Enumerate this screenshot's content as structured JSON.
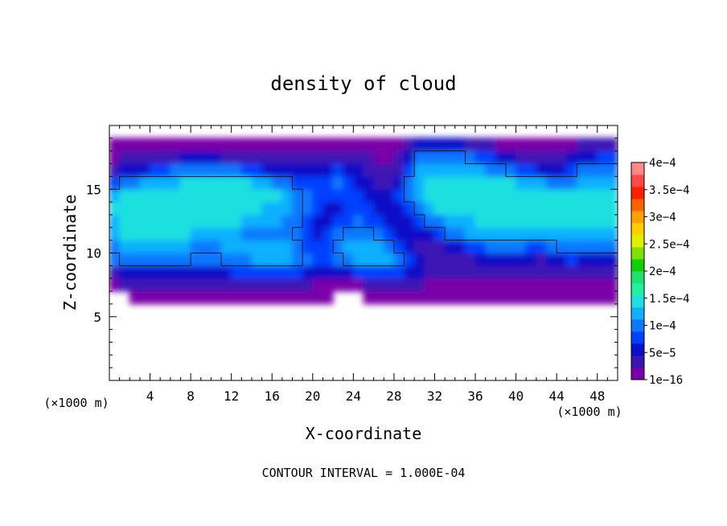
{
  "chart_data": {
    "type": "heatmap",
    "title": "density of cloud",
    "xlabel": "X-coordinate",
    "ylabel": "Z-coordinate",
    "x_unit_label": "(×1000 m)",
    "y_unit_label": "(×1000 m)",
    "footer": "CONTOUR INTERVAL = 1.000E-04",
    "xlim": [
      0,
      50
    ],
    "ylim": [
      0,
      20
    ],
    "x_ticks": [
      "4",
      "8",
      "12",
      "16",
      "20",
      "24",
      "28",
      "32",
      "36",
      "40",
      "44",
      "48"
    ],
    "y_ticks": [
      "5",
      "10",
      "15"
    ],
    "x_tick_values": [
      4,
      8,
      12,
      16,
      20,
      24,
      28,
      32,
      36,
      40,
      44,
      48
    ],
    "y_tick_values": [
      5,
      10,
      15
    ],
    "contour_level": 0.0001,
    "colorbar": {
      "labels": [
        "4e−4",
        "3.5e−4",
        "3e−4",
        "2.5e−4",
        "2e−4",
        "1.5e−4",
        "1e−4",
        "5e−5",
        "1e−16"
      ],
      "label_values": [
        0.0004,
        0.00035,
        0.0003,
        0.00025,
        0.0002,
        0.00015,
        0.0001,
        5e-05,
        1e-16
      ],
      "colors": [
        "#7a00a8",
        "#3c14b4",
        "#0a10c8",
        "#0040ff",
        "#0a78ff",
        "#10b0ff",
        "#1ee0e0",
        "#20f0a0",
        "#20e070",
        "#10d000",
        "#80e000",
        "#e0f000",
        "#ffd000",
        "#ffa000",
        "#ff6000",
        "#ff2000",
        "#ff4848",
        "#ff8888"
      ]
    },
    "field": {
      "nx": 50,
      "nz": 20,
      "cell_width": 1,
      "cell_height": 1,
      "x_step": 1,
      "z_step": 1,
      "values_note": "approximate cloud density per 1 km × 1 km cell, rows from z = 0 to z = 20 (×1000 m)",
      "rows": [
        [
          0,
          0,
          0,
          0,
          0,
          0,
          0,
          0,
          0,
          0,
          0,
          0,
          0,
          0,
          0,
          0,
          0,
          0,
          0,
          0,
          0,
          0,
          0,
          0,
          0,
          0,
          0,
          0,
          0,
          0,
          0,
          0,
          0,
          0,
          0,
          0,
          0,
          0,
          0,
          0,
          0,
          0,
          0,
          0,
          0,
          0,
          0,
          0,
          0,
          0
        ],
        [
          0,
          0,
          0,
          0,
          0,
          0,
          0,
          0,
          0,
          0,
          0,
          0,
          0,
          0,
          0,
          0,
          0,
          0,
          0,
          0,
          0,
          0,
          0,
          0,
          0,
          0,
          0,
          0,
          0,
          0,
          0,
          0,
          0,
          0,
          0,
          0,
          0,
          0,
          0,
          0,
          0,
          0,
          0,
          0,
          0,
          0,
          0,
          0,
          0,
          0
        ],
        [
          0,
          0,
          0,
          0,
          0,
          0,
          0,
          0,
          0,
          0,
          0,
          0,
          0,
          0,
          0,
          0,
          0,
          0,
          0,
          0,
          0,
          0,
          0,
          0,
          0,
          0,
          0,
          0,
          0,
          0,
          0,
          0,
          0,
          0,
          0,
          0,
          0,
          0,
          0,
          0,
          0,
          0,
          0,
          0,
          0,
          0,
          0,
          0,
          0,
          0
        ],
        [
          0,
          0,
          0,
          0,
          0,
          0,
          0,
          0,
          0,
          0,
          0,
          0,
          0,
          0,
          0,
          0,
          0,
          0,
          0,
          0,
          0,
          0,
          0,
          0,
          0,
          0,
          0,
          0,
          0,
          0,
          0,
          0,
          0,
          0,
          0,
          0,
          0,
          0,
          0,
          0,
          0,
          0,
          0,
          0,
          0,
          0,
          0,
          0,
          0,
          0
        ],
        [
          0,
          0,
          0,
          0,
          0,
          0,
          0,
          0,
          0,
          0,
          0,
          0,
          0,
          0,
          0,
          0,
          0,
          0,
          0,
          0,
          0,
          0,
          0,
          0,
          0,
          0,
          0,
          0,
          0,
          0,
          0,
          0,
          0,
          0,
          0,
          0,
          0,
          0,
          0,
          0,
          0,
          0,
          0,
          0,
          0,
          0,
          0,
          0,
          0,
          0
        ],
        [
          0,
          0,
          0,
          0,
          0,
          0,
          0,
          0,
          0,
          0,
          0,
          0,
          0,
          0,
          0,
          0,
          0,
          0,
          0,
          0,
          0,
          0,
          0,
          0,
          0,
          0,
          0,
          0,
          0,
          0,
          0,
          0,
          0,
          0,
          0,
          0,
          0,
          0,
          0,
          0,
          0,
          0,
          0,
          0,
          0,
          0,
          0,
          0,
          0,
          0
        ],
        [
          0,
          0,
          1e-05,
          1e-05,
          1e-05,
          1e-05,
          1e-05,
          1e-05,
          1e-05,
          1e-05,
          1e-05,
          1e-05,
          1e-05,
          1e-05,
          1e-05,
          1e-05,
          1e-05,
          1e-05,
          1e-05,
          1e-05,
          1e-05,
          1e-05,
          0,
          0,
          0,
          1e-05,
          1e-05,
          1e-05,
          1e-05,
          1e-05,
          1e-05,
          1e-05,
          1e-05,
          1e-05,
          1e-05,
          1e-05,
          1e-05,
          1e-05,
          1e-05,
          1e-05,
          1e-05,
          1e-05,
          1e-05,
          1e-05,
          1e-05,
          1e-05,
          1e-05,
          1e-05,
          1e-05,
          1e-05
        ],
        [
          1e-05,
          3e-05,
          3e-05,
          3e-05,
          3e-05,
          3e-05,
          3e-05,
          3e-05,
          3e-05,
          3e-05,
          3e-05,
          3e-05,
          3e-05,
          3e-05,
          3e-05,
          3e-05,
          3e-05,
          3e-05,
          3e-05,
          3e-05,
          2e-05,
          2e-05,
          1e-05,
          1e-05,
          2e-05,
          3e-05,
          3e-05,
          3e-05,
          3e-05,
          3e-05,
          3e-05,
          2e-05,
          2e-05,
          2e-05,
          2e-05,
          2e-05,
          2e-05,
          2e-05,
          2e-05,
          2e-05,
          2e-05,
          2e-05,
          2e-05,
          2e-05,
          2e-05,
          2e-05,
          2e-05,
          2e-05,
          2e-05,
          2e-05
        ],
        [
          4e-05,
          6e-05,
          6e-05,
          6e-05,
          6e-05,
          6e-05,
          6e-05,
          6e-05,
          6e-05,
          6e-05,
          6e-05,
          6e-05,
          7e-05,
          8e-05,
          8e-05,
          8e-05,
          8e-05,
          8e-05,
          7e-05,
          6e-05,
          6e-05,
          6e-05,
          5e-05,
          6e-05,
          7e-05,
          8e-05,
          8e-05,
          8e-05,
          7e-05,
          6e-05,
          5e-05,
          4e-05,
          3e-05,
          3e-05,
          3e-05,
          3e-05,
          4e-05,
          4e-05,
          4e-05,
          4e-05,
          3e-05,
          3e-05,
          3e-05,
          3e-05,
          4e-05,
          4e-05,
          3e-05,
          3e-05,
          3e-05,
          3e-05
        ],
        [
          9e-05,
          0.0001,
          0.0001,
          0.0001,
          0.0001,
          0.0001,
          0.0001,
          0.0001,
          9e-05,
          9e-05,
          9e-05,
          0.0001,
          0.0001,
          0.00011,
          0.00012,
          0.00012,
          0.00012,
          0.00012,
          0.00011,
          9e-05,
          8e-05,
          8e-05,
          9e-05,
          0.00011,
          0.00012,
          0.00013,
          0.00013,
          0.00012,
          0.0001,
          8e-05,
          5e-05,
          3e-05,
          3e-05,
          4e-05,
          4e-05,
          4e-05,
          5e-05,
          6e-05,
          6e-05,
          6e-05,
          6e-05,
          5e-05,
          4e-05,
          5e-05,
          6e-05,
          7e-05,
          6e-05,
          5e-05,
          5e-05,
          6e-05
        ],
        [
          0.00011,
          0.00012,
          0.00012,
          0.00012,
          0.00012,
          0.00012,
          0.00012,
          0.00012,
          0.00011,
          0.00011,
          0.00011,
          0.00012,
          0.00012,
          0.00013,
          0.00013,
          0.00013,
          0.00013,
          0.00012,
          0.0001,
          8e-05,
          7e-05,
          8e-05,
          0.0001,
          0.00012,
          0.00013,
          0.00013,
          0.00012,
          0.0001,
          7e-05,
          5e-05,
          4e-05,
          3e-05,
          4e-05,
          5e-05,
          6e-05,
          7e-05,
          8e-05,
          9e-05,
          9e-05,
          9e-05,
          9e-05,
          8e-05,
          8e-05,
          9e-05,
          0.0001,
          0.0001,
          0.0001,
          0.0001,
          0.0001,
          0.0001
        ],
        [
          0.00013,
          0.00014,
          0.00014,
          0.00014,
          0.00014,
          0.00014,
          0.00014,
          0.00014,
          0.00013,
          0.00013,
          0.00013,
          0.00013,
          0.00012,
          0.00011,
          0.00011,
          0.00011,
          0.00011,
          0.0001,
          9e-05,
          7e-05,
          6e-05,
          7e-05,
          9e-05,
          0.0001,
          0.0001,
          0.0001,
          9e-05,
          8e-05,
          6e-05,
          5e-05,
          5e-05,
          6e-05,
          8e-05,
          0.0001,
          0.00011,
          0.00012,
          0.00012,
          0.00013,
          0.00013,
          0.00013,
          0.00012,
          0.00012,
          0.00012,
          0.00012,
          0.00013,
          0.00013,
          0.00013,
          0.00013,
          0.00013,
          0.00013
        ],
        [
          0.00013,
          0.00014,
          0.00014,
          0.00015,
          0.00015,
          0.00015,
          0.00015,
          0.00015,
          0.00015,
          0.00014,
          0.00014,
          0.00014,
          0.00014,
          0.00013,
          0.00013,
          0.00012,
          0.00012,
          0.00011,
          0.0001,
          8e-05,
          6e-05,
          6e-05,
          7e-05,
          8e-05,
          9e-05,
          8e-05,
          7e-05,
          6e-05,
          5e-05,
          6e-05,
          8e-05,
          0.0001,
          0.00011,
          0.00012,
          0.00013,
          0.00013,
          0.00014,
          0.00014,
          0.00014,
          0.00014,
          0.00014,
          0.00014,
          0.00014,
          0.00014,
          0.00014,
          0.00014,
          0.00014,
          0.00014,
          0.00014,
          0.00014
        ],
        [
          0.00014,
          0.00015,
          0.00015,
          0.00015,
          0.00015,
          0.00015,
          0.00015,
          0.00015,
          0.00015,
          0.00015,
          0.00015,
          0.00015,
          0.00015,
          0.00014,
          0.00014,
          0.00013,
          0.00013,
          0.00012,
          0.00011,
          9e-05,
          7e-05,
          6e-05,
          6e-05,
          7e-05,
          8e-05,
          7e-05,
          6e-05,
          5e-05,
          6e-05,
          8e-05,
          0.00011,
          0.00013,
          0.00014,
          0.00014,
          0.00014,
          0.00015,
          0.00015,
          0.00015,
          0.00015,
          0.00015,
          0.00015,
          0.00015,
          0.00015,
          0.00015,
          0.00015,
          0.00015,
          0.00015,
          0.00015,
          0.00015,
          0.00015
        ],
        [
          0.00013,
          0.00014,
          0.00014,
          0.00015,
          0.00015,
          0.00015,
          0.00015,
          0.00015,
          0.00015,
          0.00015,
          0.00015,
          0.00015,
          0.00015,
          0.00015,
          0.00015,
          0.00014,
          0.00014,
          0.00013,
          0.00011,
          9e-05,
          7e-05,
          7e-05,
          8e-05,
          8e-05,
          7e-05,
          6e-05,
          5e-05,
          5e-05,
          7e-05,
          0.0001,
          0.00013,
          0.00014,
          0.00015,
          0.00015,
          0.00015,
          0.00015,
          0.00015,
          0.00015,
          0.00015,
          0.00015,
          0.00015,
          0.00015,
          0.00015,
          0.00015,
          0.00015,
          0.00015,
          0.00015,
          0.00015,
          0.00015,
          0.00015
        ],
        [
          8e-05,
          0.0001,
          0.00011,
          0.00012,
          0.00013,
          0.00013,
          0.00013,
          0.00014,
          0.00014,
          0.00014,
          0.00014,
          0.00014,
          0.00014,
          0.00014,
          0.00013,
          0.00012,
          0.00011,
          0.0001,
          8e-05,
          7e-05,
          7e-05,
          8e-05,
          9e-05,
          8e-05,
          6e-05,
          5e-05,
          4e-05,
          4e-05,
          6e-05,
          0.0001,
          0.00013,
          0.00014,
          0.00014,
          0.00014,
          0.00014,
          0.00014,
          0.00014,
          0.00014,
          0.00014,
          0.00014,
          0.00013,
          0.00012,
          0.00012,
          0.00011,
          0.0001,
          0.00011,
          0.00012,
          0.00012,
          0.00012,
          0.00012
        ],
        [
          4e-05,
          5e-05,
          5e-05,
          6e-05,
          7e-05,
          8e-05,
          9e-05,
          9e-05,
          9e-05,
          9e-05,
          9e-05,
          9e-05,
          9e-05,
          8e-05,
          7e-05,
          6e-05,
          6e-05,
          6e-05,
          6e-05,
          6e-05,
          6e-05,
          6e-05,
          7e-05,
          6e-05,
          5e-05,
          4e-05,
          3e-05,
          3e-05,
          4e-05,
          8e-05,
          0.00012,
          0.00013,
          0.00013,
          0.00013,
          0.00013,
          0.00013,
          0.00012,
          0.00011,
          0.0001,
          9e-05,
          8e-05,
          7e-05,
          6e-05,
          5e-05,
          6e-05,
          8e-05,
          0.0001,
          0.0001,
          0.00011,
          0.0001
        ],
        [
          2e-05,
          3e-05,
          3e-05,
          3e-05,
          4e-05,
          4e-05,
          4e-05,
          5e-05,
          5e-05,
          5e-05,
          5e-05,
          4e-05,
          4e-05,
          4e-05,
          3e-05,
          3e-05,
          3e-05,
          3e-05,
          4e-05,
          4e-05,
          4e-05,
          4e-05,
          4e-05,
          4e-05,
          3e-05,
          3e-05,
          2e-05,
          2e-05,
          3e-05,
          6e-05,
          0.0001,
          0.00011,
          0.00011,
          0.00011,
          0.0001,
          9e-05,
          8e-05,
          7e-05,
          6e-05,
          5e-05,
          4e-05,
          4e-05,
          3e-05,
          3e-05,
          4e-05,
          5e-05,
          6e-05,
          6e-05,
          7e-05,
          7e-05
        ],
        [
          1e-05,
          1e-05,
          1e-05,
          1e-05,
          1e-05,
          1e-05,
          1e-05,
          2e-05,
          2e-05,
          2e-05,
          2e-05,
          2e-05,
          2e-05,
          2e-05,
          2e-05,
          2e-05,
          2e-05,
          2e-05,
          2e-05,
          2e-05,
          2e-05,
          2e-05,
          2e-05,
          2e-05,
          2e-05,
          1e-05,
          1e-05,
          1e-05,
          2e-05,
          3e-05,
          5e-05,
          5e-05,
          5e-05,
          5e-05,
          5e-05,
          4e-05,
          3e-05,
          3e-05,
          2e-05,
          2e-05,
          2e-05,
          2e-05,
          2e-05,
          2e-05,
          2e-05,
          2e-05,
          3e-05,
          3e-05,
          3e-05,
          3e-05
        ],
        [
          0,
          0,
          0,
          0,
          0,
          0,
          0,
          0,
          0,
          0,
          0,
          0,
          0,
          0,
          0,
          0,
          0,
          0,
          0,
          0,
          0,
          0,
          0,
          0,
          0,
          0,
          0,
          0,
          0,
          0,
          0,
          0,
          0,
          0,
          0,
          0,
          0,
          0,
          0,
          0,
          0,
          0,
          0,
          0,
          0,
          0,
          0,
          0,
          0,
          0
        ]
      ]
    },
    "grid": false,
    "legend": "right"
  }
}
